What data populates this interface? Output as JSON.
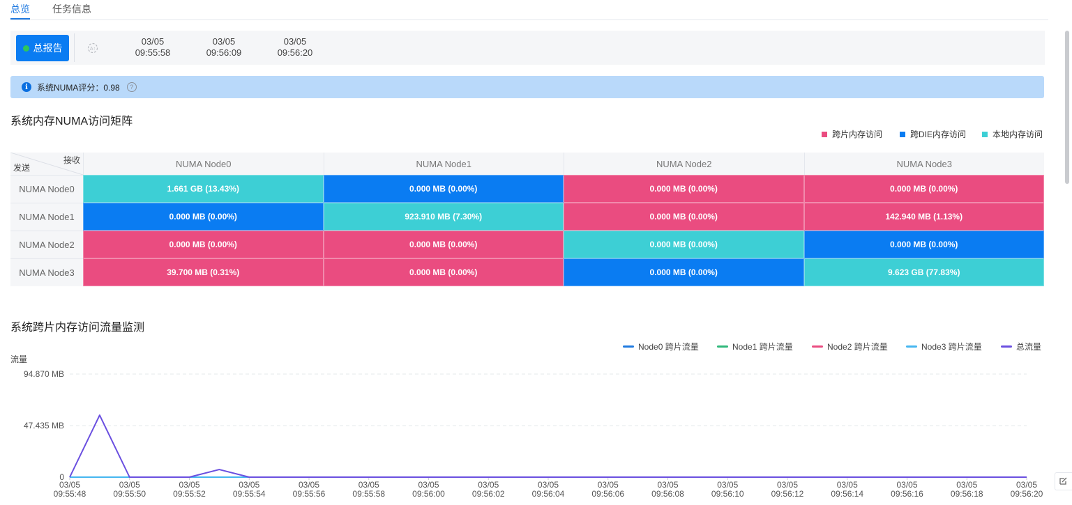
{
  "tabs": [
    {
      "label": "总览",
      "active": true
    },
    {
      "label": "任务信息",
      "active": false
    }
  ],
  "toolbar": {
    "report_label": "总报告",
    "timestamps": [
      {
        "date": "03/05",
        "time": "09:55:58"
      },
      {
        "date": "03/05",
        "time": "09:56:09"
      },
      {
        "date": "03/05",
        "time": "09:56:20"
      }
    ]
  },
  "alert": {
    "text": "系统NUMA评分：0.98"
  },
  "matrix_section": {
    "title": "系统内存NUMA访问矩阵",
    "legend": [
      {
        "label": "跨片内存访问",
        "color": "#ea4c80"
      },
      {
        "label": "跨DIE内存访问",
        "color": "#0a7cf2"
      },
      {
        "label": "本地内存访问",
        "color": "#3dcfd5"
      }
    ],
    "corner_recv": "接收",
    "corner_send": "发送",
    "columns": [
      "NUMA Node0",
      "NUMA Node1",
      "NUMA Node2",
      "NUMA Node3"
    ],
    "rows": [
      {
        "label": "NUMA Node0",
        "cells": [
          {
            "text": "1.661 GB  (13.43%)",
            "type": "local"
          },
          {
            "text": "0.000 MB  (0.00%)",
            "type": "die"
          },
          {
            "text": "0.000 MB  (0.00%)",
            "type": "chip"
          },
          {
            "text": "0.000 MB  (0.00%)",
            "type": "chip"
          }
        ]
      },
      {
        "label": "NUMA Node1",
        "cells": [
          {
            "text": "0.000 MB  (0.00%)",
            "type": "die"
          },
          {
            "text": "923.910 MB  (7.30%)",
            "type": "local"
          },
          {
            "text": "0.000 MB  (0.00%)",
            "type": "chip"
          },
          {
            "text": "142.940 MB  (1.13%)",
            "type": "chip"
          }
        ]
      },
      {
        "label": "NUMA Node2",
        "cells": [
          {
            "text": "0.000 MB  (0.00%)",
            "type": "chip"
          },
          {
            "text": "0.000 MB  (0.00%)",
            "type": "chip"
          },
          {
            "text": "0.000 MB  (0.00%)",
            "type": "local"
          },
          {
            "text": "0.000 MB  (0.00%)",
            "type": "die"
          }
        ]
      },
      {
        "label": "NUMA Node3",
        "cells": [
          {
            "text": "39.700 MB  (0.31%)",
            "type": "chip"
          },
          {
            "text": "0.000 MB  (0.00%)",
            "type": "chip"
          },
          {
            "text": "0.000 MB  (0.00%)",
            "type": "die"
          },
          {
            "text": "9.623 GB  (77.83%)",
            "type": "local"
          }
        ]
      }
    ],
    "type_colors": {
      "chip": "#ea4c80",
      "die": "#0a7cf2",
      "local": "#3dcfd5"
    }
  },
  "flow_section": {
    "title": "系统跨片内存访问流量监测"
  },
  "chart_data": {
    "type": "line",
    "ylabel": "流量",
    "y_ticks": [
      "94.870 MB",
      "47.435 MB",
      "0"
    ],
    "ylim": [
      0,
      94.87
    ],
    "grid": true,
    "legend_position": "top-right",
    "x": [
      "03/05 09:55:48",
      "",
      "03/05 09:55:50",
      "",
      "03/05 09:55:52",
      "",
      "03/05 09:55:54",
      "",
      "03/05 09:55:56",
      "",
      "03/05 09:55:58",
      "",
      "03/05 09:56:00",
      "",
      "03/05 09:56:02",
      "",
      "03/05 09:56:04",
      "",
      "03/05 09:56:06",
      "",
      "03/05 09:56:08",
      "",
      "03/05 09:56:10",
      "",
      "03/05 09:56:12",
      "",
      "03/05 09:56:14",
      "",
      "03/05 09:56:16",
      "",
      "03/05 09:56:18",
      "",
      "03/05 09:56:20"
    ],
    "series": [
      {
        "name": "Node0 跨片流量",
        "color": "#1f7ae0",
        "values": [
          0,
          0,
          0,
          0,
          0,
          0,
          0,
          0,
          0,
          0,
          0,
          0,
          0,
          0,
          0,
          0,
          0,
          0,
          0,
          0,
          0,
          0,
          0,
          0,
          0,
          0,
          0,
          0,
          0,
          0,
          0,
          0,
          0
        ]
      },
      {
        "name": "Node1 跨片流量",
        "color": "#2fb87a",
        "values": [
          0,
          0,
          0,
          0,
          0,
          0,
          0,
          0,
          0,
          0,
          0,
          0,
          0,
          0,
          0,
          0,
          0,
          0,
          0,
          0,
          0,
          0,
          0,
          0,
          0,
          0,
          0,
          0,
          0,
          0,
          0,
          0,
          0
        ]
      },
      {
        "name": "Node2 跨片流量",
        "color": "#ea4c80",
        "values": [
          0,
          0,
          0,
          0,
          0,
          0,
          0,
          0,
          0,
          0,
          0,
          0,
          0,
          0,
          0,
          0,
          0,
          0,
          0,
          0,
          0,
          0,
          0,
          0,
          0,
          0,
          0,
          0,
          0,
          0,
          0,
          0,
          0
        ]
      },
      {
        "name": "Node3 跨片流量",
        "color": "#45b6f0",
        "values": [
          0,
          0,
          0,
          0,
          0,
          0,
          0,
          0,
          0,
          0,
          0,
          0,
          0,
          0,
          0,
          0,
          0,
          0,
          0,
          0,
          0,
          0,
          0,
          0,
          0,
          0,
          0,
          0,
          0,
          0,
          0,
          0,
          0
        ]
      },
      {
        "name": "总流量",
        "color": "#6a4fe0",
        "values": [
          0,
          57,
          0,
          0,
          0,
          7,
          0,
          0,
          0,
          0,
          0,
          0,
          0,
          0,
          0,
          0,
          0,
          0,
          0,
          0,
          0,
          0,
          0,
          0,
          0,
          0,
          0,
          0,
          0,
          0,
          0,
          0,
          0
        ]
      }
    ]
  }
}
